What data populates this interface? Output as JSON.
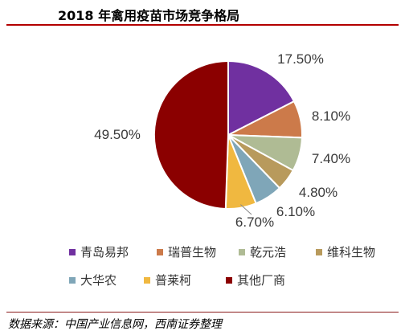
{
  "title": "2018 年禽用疫苗市场竞争格局",
  "source": "数据来源：中国产业信息网，西南证券整理",
  "chart_data": {
    "type": "pie",
    "start_angle_deg": 0,
    "direction": "clockwise",
    "series": [
      {
        "name": "青岛易邦",
        "value": 17.5,
        "label": "17.50%",
        "color": "#7030A0"
      },
      {
        "name": "瑞普生物",
        "value": 8.1,
        "label": "8.10%",
        "color": "#CC7A4A"
      },
      {
        "name": "乾元浩",
        "value": 7.4,
        "label": "7.40%",
        "color": "#AFBB94"
      },
      {
        "name": "维科生物",
        "value": 4.8,
        "label": "4.80%",
        "color": "#B89A5C"
      },
      {
        "name": "大华农",
        "value": 6.1,
        "label": "6.10%",
        "color": "#7FA6B8"
      },
      {
        "name": "普莱柯",
        "value": 6.7,
        "label": "6.70%",
        "color": "#F0B840"
      },
      {
        "name": "其他厂商",
        "value": 49.5,
        "label": "49.50%",
        "color": "#8B0000"
      }
    ],
    "legend": "bottom"
  }
}
